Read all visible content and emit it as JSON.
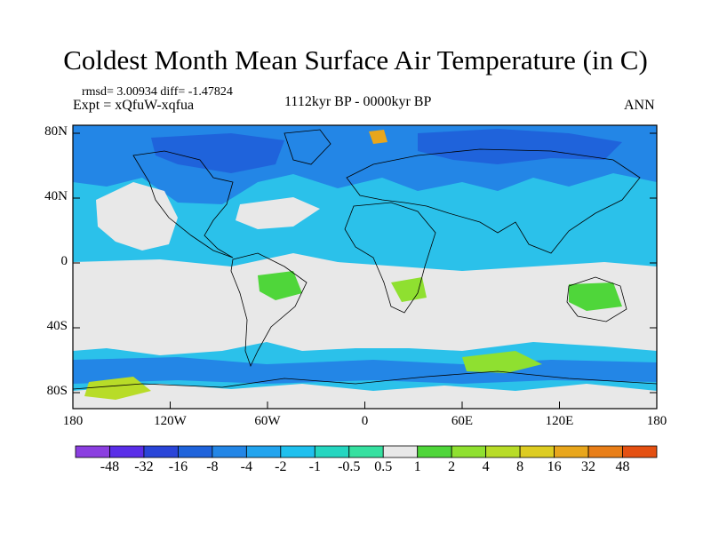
{
  "title": "Coldest Month Mean Surface Air Temperature (in C)",
  "stats": "rmsd= 3.00934 diff= -1.47824",
  "experiment": "Expt = xQfuW-xqfua",
  "period": "1112kyr BP - 0000kyr BP",
  "season": "ANN",
  "y_ticks": [
    "80N",
    "40N",
    "0",
    "40S",
    "80S"
  ],
  "x_ticks": [
    "180",
    "120W",
    "60W",
    "0",
    "60E",
    "120E",
    "180"
  ],
  "colorbar": {
    "labels": [
      "-48",
      "-32",
      "-16",
      "-8",
      "-4",
      "-2",
      "-1",
      "-0.5",
      "0.5",
      "1",
      "2",
      "4",
      "8",
      "16",
      "32",
      "48"
    ],
    "colors": [
      "#8b3fe0",
      "#5a2ee8",
      "#2a45d8",
      "#1f63db",
      "#2386e6",
      "#22a4ee",
      "#1fc0ee",
      "#25d6c0",
      "#36e0a0",
      "#e8e8e8",
      "#4fd63a",
      "#8fe030",
      "#b8dc28",
      "#ddcc22",
      "#e8a61c",
      "#e87e18",
      "#e45012"
    ]
  }
}
